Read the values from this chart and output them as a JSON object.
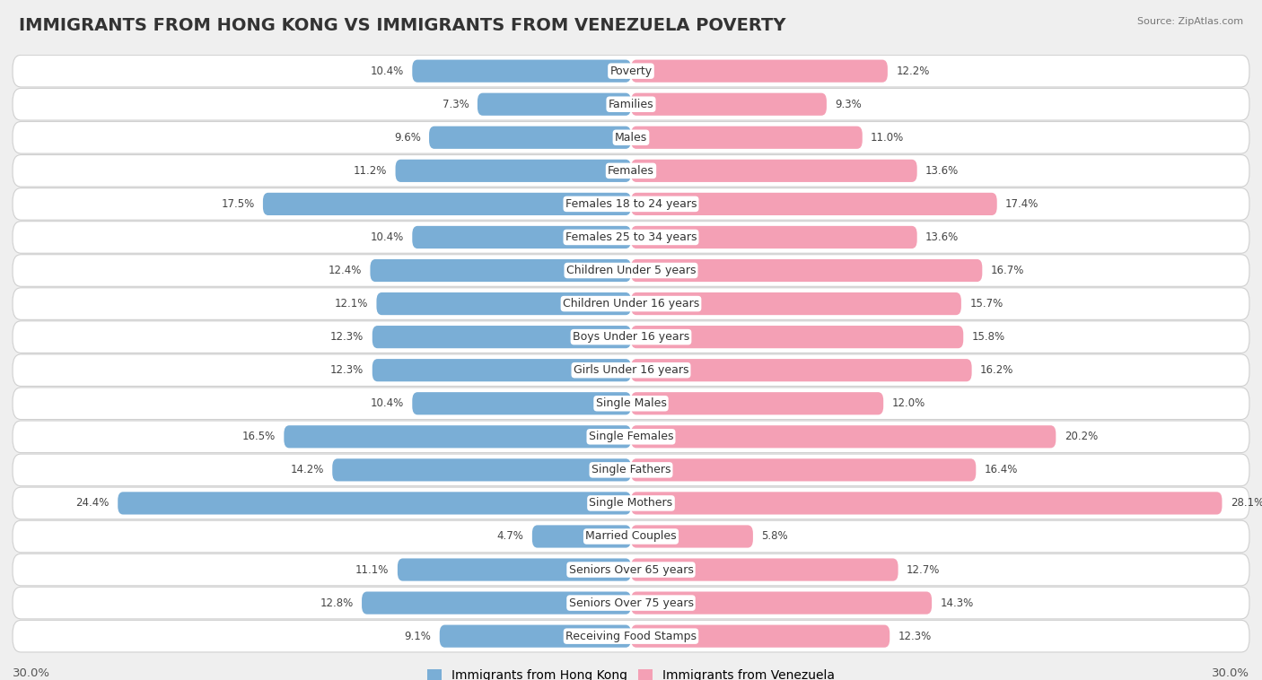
{
  "title": "IMMIGRANTS FROM HONG KONG VS IMMIGRANTS FROM VENEZUELA POVERTY",
  "source": "Source: ZipAtlas.com",
  "categories": [
    "Poverty",
    "Families",
    "Males",
    "Females",
    "Females 18 to 24 years",
    "Females 25 to 34 years",
    "Children Under 5 years",
    "Children Under 16 years",
    "Boys Under 16 years",
    "Girls Under 16 years",
    "Single Males",
    "Single Females",
    "Single Fathers",
    "Single Mothers",
    "Married Couples",
    "Seniors Over 65 years",
    "Seniors Over 75 years",
    "Receiving Food Stamps"
  ],
  "hk_values": [
    10.4,
    7.3,
    9.6,
    11.2,
    17.5,
    10.4,
    12.4,
    12.1,
    12.3,
    12.3,
    10.4,
    16.5,
    14.2,
    24.4,
    4.7,
    11.1,
    12.8,
    9.1
  ],
  "vz_values": [
    12.2,
    9.3,
    11.0,
    13.6,
    17.4,
    13.6,
    16.7,
    15.7,
    15.8,
    16.2,
    12.0,
    20.2,
    16.4,
    28.1,
    5.8,
    12.7,
    14.3,
    12.3
  ],
  "hk_color": "#7aaed6",
  "vz_color": "#f4a0b5",
  "hk_label": "Immigrants from Hong Kong",
  "vz_label": "Immigrants from Venezuela",
  "axis_max": 30.0,
  "background_color": "#efefef",
  "row_bg_color": "#ffffff",
  "title_fontsize": 14,
  "label_fontsize": 9,
  "value_fontsize": 8.5,
  "axis_label_fontsize": 9.5,
  "legend_fontsize": 10
}
